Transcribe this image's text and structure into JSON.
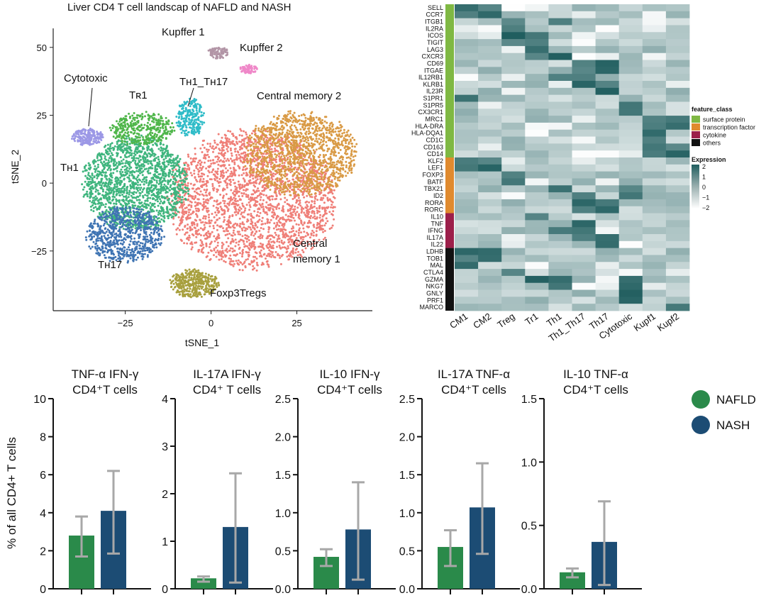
{
  "chart_data": [
    {
      "type": "scatter",
      "title": "Liver CD4 T cell landscap of NAFLD and NASH",
      "xlabel": "tSNE_1",
      "ylabel": "tSNE_2",
      "xlim": [
        -46,
        47
      ],
      "ylim": [
        -47,
        57
      ],
      "xticks": [
        -25,
        0,
        25
      ],
      "yticks": [
        50,
        25,
        0,
        -25
      ],
      "clusters": [
        {
          "name": "Central memory 1",
          "color": "#ef7f78",
          "cx": 12,
          "cy": -6,
          "rx": 24,
          "ry": 25,
          "n": 2400
        },
        {
          "name": "Central memory 2",
          "color": "#d99a45",
          "cx": 26,
          "cy": 11,
          "rx": 16,
          "ry": 15,
          "n": 1300
        },
        {
          "name": "TH1",
          "color": "#3fb57e",
          "cx": -22,
          "cy": 0,
          "rx": 15,
          "ry": 17,
          "n": 1600
        },
        {
          "name": "TR1",
          "color": "#4fb64a",
          "cx": -20,
          "cy": 20,
          "rx": 9,
          "ry": 6,
          "n": 350
        },
        {
          "name": "TH17",
          "color": "#3f74b3",
          "cx": -25,
          "cy": -19,
          "rx": 11,
          "ry": 10,
          "n": 700
        },
        {
          "name": "Cytotoxic",
          "color": "#9c98e6",
          "cx": -36,
          "cy": 17,
          "rx": 4.5,
          "ry": 3,
          "n": 200
        },
        {
          "name": "TH1_TH17",
          "color": "#2fbcc8",
          "cx": -6,
          "cy": 24,
          "rx": 4,
          "ry": 7,
          "n": 230
        },
        {
          "name": "Kupffer 1",
          "color": "#b295a6",
          "cx": 2,
          "cy": 48,
          "rx": 3,
          "ry": 2.2,
          "n": 80
        },
        {
          "name": "Kupffer 2",
          "color": "#ef87c8",
          "cx": 11,
          "cy": 42,
          "rx": 2.5,
          "ry": 1.6,
          "n": 60
        },
        {
          "name": "Foxp3Tregs",
          "color": "#a8a03e",
          "cx": -5,
          "cy": -37,
          "rx": 7,
          "ry": 5,
          "n": 380
        }
      ],
      "labels": {
        "kupffer1": "Kupffer 1",
        "kupffer2": "Kupffer 2",
        "cytotoxic": "Cytotoxic",
        "tr1": "Tʀ1",
        "th1th17": "Tʜ1_Tʜ17",
        "cm2": "Central memory 2",
        "th1": "Tʜ1",
        "th17": "Tʜ17",
        "cm1_line1": "Central",
        "cm1_line2": "memory 1",
        "foxp3": "Foxp3Tregs"
      }
    },
    {
      "type": "heatmap",
      "genes": [
        "SELL",
        "CCR7",
        "ITGB1",
        "IL2RA",
        "ICOS",
        "TIGIT",
        "LAG3",
        "CXCR3",
        "CD69",
        "ITGAE",
        "IL12RB1",
        "KLRB1",
        "IL23R",
        "S1PR1",
        "S1PR5",
        "CX3CR1",
        "MRC1",
        "HLA-DRA",
        "HLA-DQA1",
        "CD1C",
        "CD163",
        "CD14",
        "KLF2",
        "LEF1",
        "FOXP3",
        "BATF",
        "TBX21",
        "ID2",
        "RORA",
        "RORC",
        "IL10",
        "TNF",
        "IFNG",
        "IL17A",
        "IL22",
        "LDHB",
        "TOB1",
        "MAL",
        "CTLA4",
        "GZMA",
        "NKG7",
        "GNLY",
        "PRF1",
        "MARCO"
      ],
      "columns": [
        "CM1",
        "CM2",
        "Treg",
        "Tr1",
        "Th1",
        "Th1_Th17",
        "Th17",
        "Cytotoxic",
        "Kupf1",
        "Kupf2"
      ],
      "feature_classes": [
        {
          "name": "surface protein",
          "color": "#7fb843",
          "rows": 22
        },
        {
          "name": "transcription factor",
          "color": "#e08a2e",
          "rows": 8
        },
        {
          "name": "cytokine",
          "color": "#9c1f4a",
          "rows": 5
        },
        {
          "name": "others",
          "color": "#111111",
          "rows": 9
        }
      ],
      "legend_title_class": "feature_class",
      "legend_title_expr": "Expression",
      "expression_range": [
        -2,
        2
      ],
      "expression_ticks": [
        "2",
        "1",
        "0",
        "−1",
        "−2"
      ],
      "colors": {
        "low": "#ffffff",
        "high": "#1f5d5e"
      }
    },
    {
      "type": "bar",
      "ylabel": "% of  all CD4+ T cells",
      "series_names": [
        "NAFLD",
        "NASH"
      ],
      "series_colors": [
        "#2a8a4a",
        "#1c4c74"
      ],
      "panels": [
        {
          "title_line1": "TNF-α IFN-γ",
          "title_line2": "CD4⁺T cells",
          "ylim": [
            0,
            10
          ],
          "yticks": [
            "0",
            "2",
            "4",
            "6",
            "8",
            "10"
          ],
          "values": [
            2.8,
            4.1
          ],
          "err_low": [
            1.7,
            1.85
          ],
          "err_high": [
            3.8,
            6.2
          ]
        },
        {
          "title_line1": "IL-17A IFN-γ",
          "title_line2": "CD4⁺ T cells",
          "ylim": [
            0,
            4
          ],
          "yticks": [
            "0",
            "1",
            "2",
            "3",
            "4"
          ],
          "values": [
            0.22,
            1.3
          ],
          "err_low": [
            0.15,
            0.13
          ],
          "err_high": [
            0.26,
            2.43
          ]
        },
        {
          "title_line1": "IL-10 IFN-γ",
          "title_line2": "CD4⁺T cells",
          "ylim": [
            0,
            2.5
          ],
          "yticks": [
            "0.0",
            "0.5",
            "1.0",
            "1.5",
            "2.0",
            "2.5"
          ],
          "values": [
            0.42,
            0.78
          ],
          "err_low": [
            0.3,
            0.12
          ],
          "err_high": [
            0.52,
            1.4
          ]
        },
        {
          "title_line1": "IL-17A TNF-α",
          "title_line2": "CD4⁺T cells",
          "ylim": [
            0,
            2.5
          ],
          "yticks": [
            "0.0",
            "0.5",
            "1.0",
            "1.5",
            "2.0",
            "2.5"
          ],
          "values": [
            0.55,
            1.07
          ],
          "err_low": [
            0.3,
            0.46
          ],
          "err_high": [
            0.77,
            1.65
          ]
        },
        {
          "title_line1": "IL-10 TNF-α",
          "title_line2": "CD4⁺T cells",
          "ylim": [
            0,
            1.5
          ],
          "yticks": [
            "0.0",
            "0.5",
            "1.0",
            "1.5"
          ],
          "values": [
            0.13,
            0.37
          ],
          "err_low": [
            0.09,
            0.03
          ],
          "err_high": [
            0.16,
            0.69
          ]
        }
      ]
    }
  ]
}
